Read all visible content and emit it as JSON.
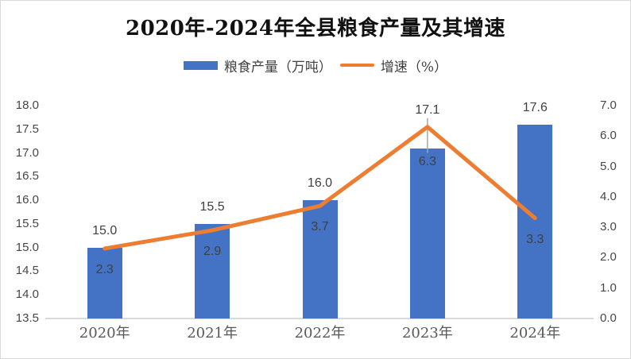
{
  "title": "2020年-2024年全县粮食产量及其增速",
  "legend": [
    {
      "label": "粮食产量（万吨）",
      "color": "#4472C4",
      "type": "bar"
    },
    {
      "label": "增速（%）",
      "color": "#ED7D31",
      "type": "line"
    }
  ],
  "chart_data": {
    "type": "combo",
    "title": "2020年-2024年全县粮食产量及其增速",
    "categories": [
      "2020年",
      "2021年",
      "2022年",
      "2023年",
      "2024年"
    ],
    "series": [
      {
        "name": "粮食产量（万吨）",
        "type": "bar",
        "axis": "left",
        "color": "#4472C4",
        "values": [
          15.0,
          15.5,
          16.0,
          17.1,
          17.6
        ]
      },
      {
        "name": "增速（%）",
        "type": "line",
        "axis": "right",
        "color": "#ED7D31",
        "values": [
          2.3,
          2.9,
          3.7,
          6.3,
          3.3
        ]
      }
    ],
    "data_labels": {
      "bar": [
        "15.0",
        "15.5",
        "16.0",
        "17.1",
        "17.6"
      ],
      "line": [
        "2.3",
        "2.9",
        "3.7",
        "6.3",
        "3.3"
      ]
    },
    "axes": {
      "left": {
        "min": 13.5,
        "max": 18.0,
        "step": 0.5,
        "ticks": [
          "13.5",
          "14.0",
          "14.5",
          "15.0",
          "15.5",
          "16.0",
          "16.5",
          "17.0",
          "17.5",
          "18.0"
        ]
      },
      "right": {
        "min": 0.0,
        "max": 7.0,
        "step": 1.0,
        "ticks": [
          "0.0",
          "1.0",
          "2.0",
          "3.0",
          "4.0",
          "5.0",
          "6.0",
          "7.0"
        ]
      }
    },
    "grid": false,
    "legend_position": "top"
  },
  "colors": {
    "bar": "#4472C4",
    "line": "#ED7D31",
    "axis_line": "#D9D9D9",
    "tick_text": "#474747",
    "data_label_text": "#404040",
    "leader_line": "#A6A6A6"
  }
}
